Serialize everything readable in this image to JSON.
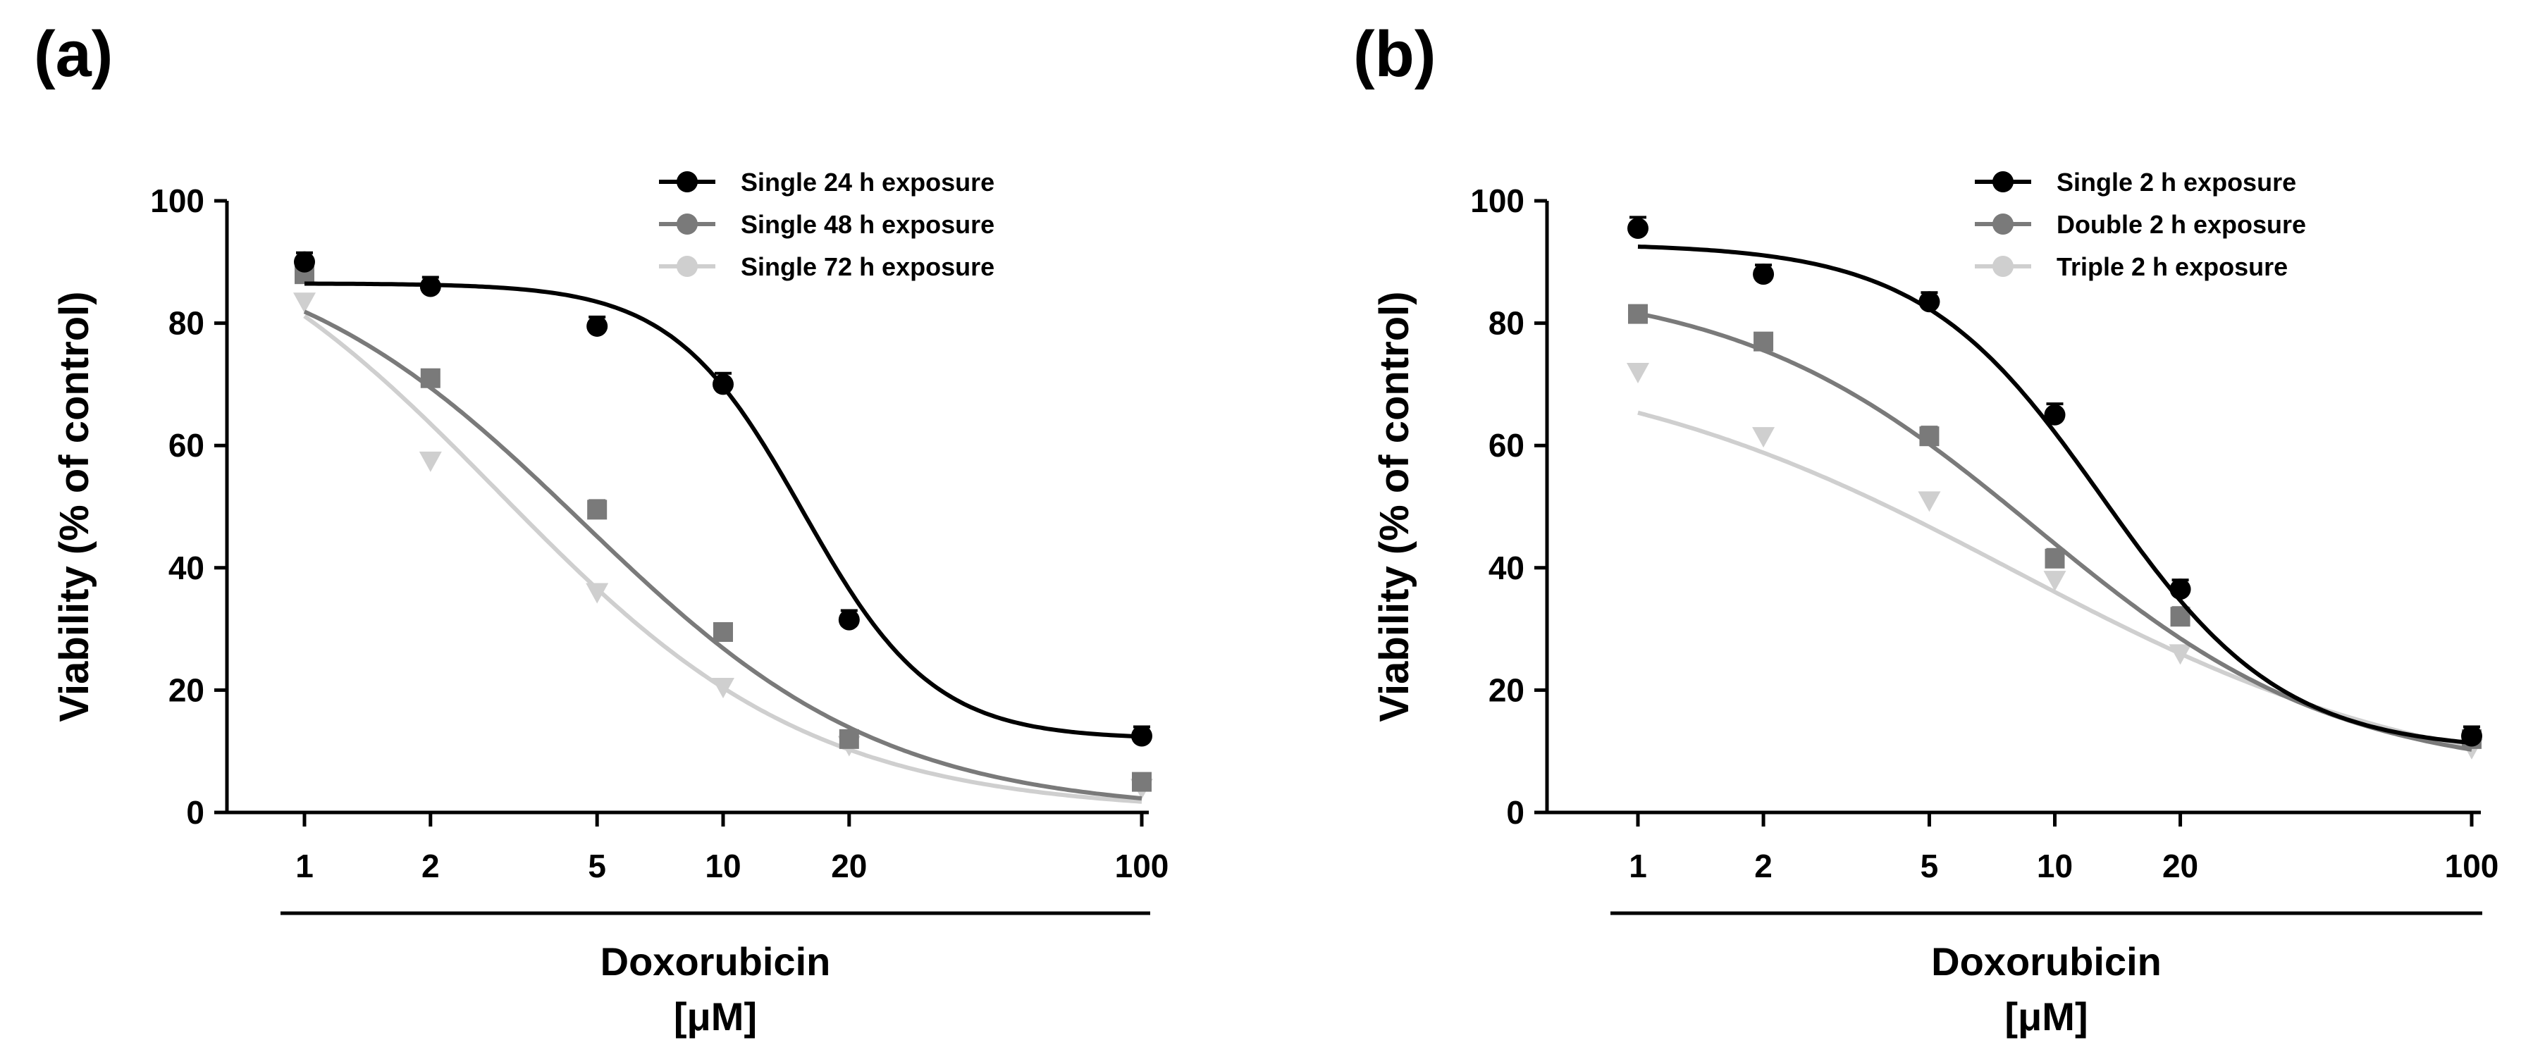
{
  "chart_data": [
    {
      "panel_label": "(a)",
      "type": "scatter",
      "xscale": "log",
      "xlabel": "Doxorubicin",
      "xunit": "[μM]",
      "ylabel": "Viability (% of control)",
      "ylim": [
        0,
        100
      ],
      "x_ticks": [
        1,
        2,
        5,
        10,
        20,
        100
      ],
      "x_tick_labels": [
        "1",
        "2",
        "5",
        "10",
        "20",
        "100"
      ],
      "y_ticks": [
        0,
        20,
        40,
        60,
        80,
        100
      ],
      "y_tick_labels": [
        "0",
        "20",
        "40",
        "60",
        "80",
        "100"
      ],
      "legend_position": "top-right",
      "series": [
        {
          "name": "Single 24 h exposure",
          "color": "#000000",
          "marker": "circle",
          "x": [
            1,
            2,
            5,
            10,
            20,
            100
          ],
          "y": [
            90,
            86,
            79.5,
            70,
            31.5,
            12.5
          ],
          "err": [
            1.5,
            1.5,
            1.5,
            1.8,
            1.5,
            1.5
          ],
          "fit": {
            "bottom": 12,
            "top": 86.5,
            "ec50": 15.5,
            "hill": 2.8
          }
        },
        {
          "name": "Single 48 h exposure",
          "color": "#7a7a7a",
          "marker": "square",
          "x": [
            1,
            2,
            5,
            10,
            20,
            100
          ],
          "y": [
            88,
            71,
            49.5,
            29.5,
            12,
            5
          ],
          "err": [
            1.2,
            1.2,
            1.5,
            1.2,
            1,
            1
          ],
          "fit": {
            "bottom": 0,
            "top": 95,
            "ec50": 4.6,
            "hill": 1.2
          }
        },
        {
          "name": "Single 72 h exposure",
          "color": "#cfcfcf",
          "marker": "triangle",
          "x": [
            1,
            2,
            5,
            10,
            20,
            100
          ],
          "y": [
            83.5,
            57.5,
            36,
            20.5,
            11,
            4
          ],
          "err": [
            1.2,
            1.2,
            1.2,
            1,
            1,
            1
          ],
          "fit": {
            "bottom": 0,
            "top": 105,
            "ec50": 2.9,
            "hill": 1.15
          }
        }
      ]
    },
    {
      "panel_label": "(b)",
      "type": "scatter",
      "xscale": "log",
      "xlabel": "Doxorubicin",
      "xunit": "[μM]",
      "ylabel": "Viability (% of control)",
      "ylim": [
        0,
        100
      ],
      "x_ticks": [
        1,
        2,
        5,
        10,
        20,
        100
      ],
      "x_tick_labels": [
        "1",
        "2",
        "5",
        "10",
        "20",
        "100"
      ],
      "y_ticks": [
        0,
        20,
        40,
        60,
        80,
        100
      ],
      "y_tick_labels": [
        "0",
        "20",
        "40",
        "60",
        "80",
        "100"
      ],
      "legend_position": "top-right",
      "series": [
        {
          "name": "Single 2 h exposure",
          "color": "#000000",
          "marker": "circle",
          "x": [
            1,
            2,
            5,
            10,
            20,
            100
          ],
          "y": [
            95.5,
            88,
            83.5,
            65,
            36.5,
            12.5
          ],
          "err": [
            1.8,
            1.5,
            1.5,
            1.8,
            1.5,
            1.5
          ],
          "fit": {
            "bottom": 10,
            "top": 93,
            "ec50": 13,
            "hill": 2
          }
        },
        {
          "name": "Double 2 h exposure",
          "color": "#7a7a7a",
          "marker": "square",
          "x": [
            1,
            2,
            5,
            10,
            20,
            100
          ],
          "y": [
            81.5,
            77,
            61.5,
            41.5,
            32,
            12
          ],
          "err": [
            1.2,
            1.2,
            1.5,
            1.5,
            1.5,
            1
          ],
          "fit": {
            "bottom": 6,
            "top": 87,
            "ec50": 9,
            "hill": 1.2
          }
        },
        {
          "name": "Triple 2 h exposure",
          "color": "#cfcfcf",
          "marker": "triangle",
          "x": [
            1,
            2,
            5,
            10,
            20,
            100
          ],
          "y": [
            72,
            61.5,
            51,
            38,
            26,
            10.5
          ],
          "err": [
            1.2,
            1.2,
            1.2,
            1.2,
            1,
            1
          ],
          "fit": {
            "bottom": 3,
            "top": 76,
            "ec50": 8,
            "hill": 0.85
          }
        }
      ]
    }
  ]
}
